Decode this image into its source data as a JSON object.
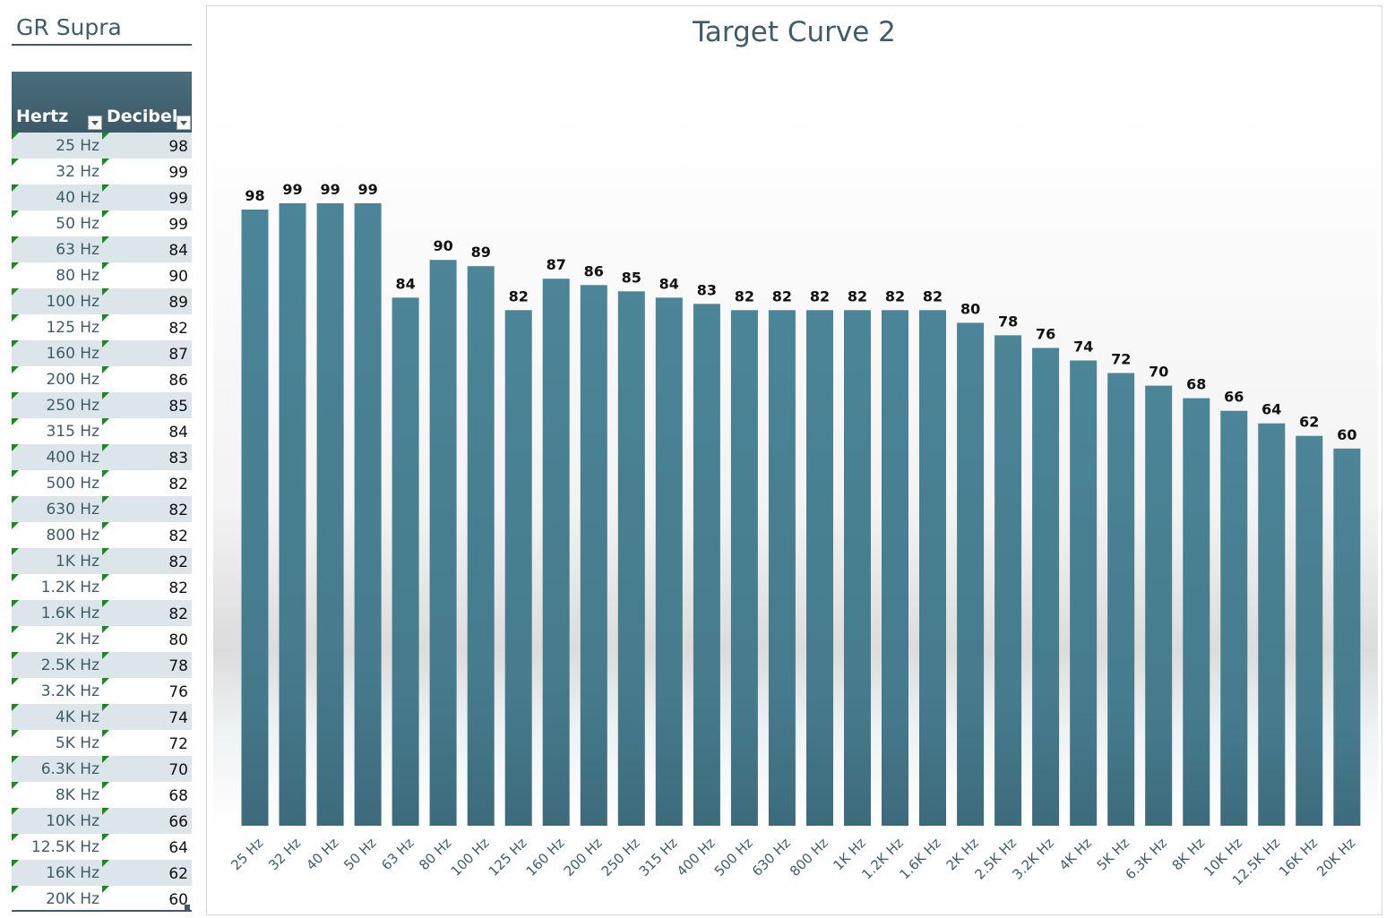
{
  "sheet_title": "GR Supra",
  "table": {
    "headers": {
      "hertz": "Hertz",
      "decibel": "Decibel"
    },
    "rows": [
      {
        "hz": "25 Hz",
        "db": "98"
      },
      {
        "hz": "32 Hz",
        "db": "99"
      },
      {
        "hz": "40 Hz",
        "db": "99"
      },
      {
        "hz": "50 Hz",
        "db": "99"
      },
      {
        "hz": "63 Hz",
        "db": "84"
      },
      {
        "hz": "80 Hz",
        "db": "90"
      },
      {
        "hz": "100 Hz",
        "db": "89"
      },
      {
        "hz": "125 Hz",
        "db": "82"
      },
      {
        "hz": "160 Hz",
        "db": "87"
      },
      {
        "hz": "200 Hz",
        "db": "86"
      },
      {
        "hz": "250 Hz",
        "db": "85"
      },
      {
        "hz": "315 Hz",
        "db": "84"
      },
      {
        "hz": "400 Hz",
        "db": "83"
      },
      {
        "hz": "500 Hz",
        "db": "82"
      },
      {
        "hz": "630 Hz",
        "db": "82"
      },
      {
        "hz": "800 Hz",
        "db": "82"
      },
      {
        "hz": "1K Hz",
        "db": "82"
      },
      {
        "hz": "1.2K Hz",
        "db": "82"
      },
      {
        "hz": "1.6K Hz",
        "db": "82"
      },
      {
        "hz": "2K Hz",
        "db": "80"
      },
      {
        "hz": "2.5K Hz",
        "db": "78"
      },
      {
        "hz": "3.2K Hz",
        "db": "76"
      },
      {
        "hz": "4K Hz",
        "db": "74"
      },
      {
        "hz": "5K Hz",
        "db": "72"
      },
      {
        "hz": "6.3K Hz",
        "db": "70"
      },
      {
        "hz": "8K Hz",
        "db": "68"
      },
      {
        "hz": "10K Hz",
        "db": "66"
      },
      {
        "hz": "12.5K Hz",
        "db": "64"
      },
      {
        "hz": "16K Hz",
        "db": "62"
      },
      {
        "hz": "20K Hz",
        "db": "60"
      }
    ]
  },
  "colors": {
    "bar": "#4a8496",
    "bar_dark": "#3f6e80",
    "title": "#3f5c6a",
    "row_band": "#dce6ea",
    "marker": "#1a8a1a"
  },
  "chart_data": {
    "type": "bar",
    "title": "Target Curve 2",
    "xlabel": "",
    "ylabel": "",
    "categories": [
      "25 Hz",
      "32 Hz",
      "40 Hz",
      "50 Hz",
      "63 Hz",
      "80 Hz",
      "100 Hz",
      "125 Hz",
      "160 Hz",
      "200 Hz",
      "250 Hz",
      "315 Hz",
      "400 Hz",
      "500 Hz",
      "630 Hz",
      "800 Hz",
      "1K Hz",
      "1.2K Hz",
      "1.6K Hz",
      "2K Hz",
      "2.5K Hz",
      "3.2K Hz",
      "4K Hz",
      "5K Hz",
      "6.3K Hz",
      "8K Hz",
      "10K Hz",
      "12.5K Hz",
      "16K Hz",
      "20K Hz"
    ],
    "values": [
      98,
      99,
      99,
      99,
      84,
      90,
      89,
      82,
      87,
      86,
      85,
      84,
      83,
      82,
      82,
      82,
      82,
      82,
      82,
      80,
      78,
      76,
      74,
      72,
      70,
      68,
      66,
      64,
      62,
      60
    ],
    "ylim": [
      0,
      130
    ],
    "data_labels": true,
    "grid": false,
    "legend": "none"
  }
}
